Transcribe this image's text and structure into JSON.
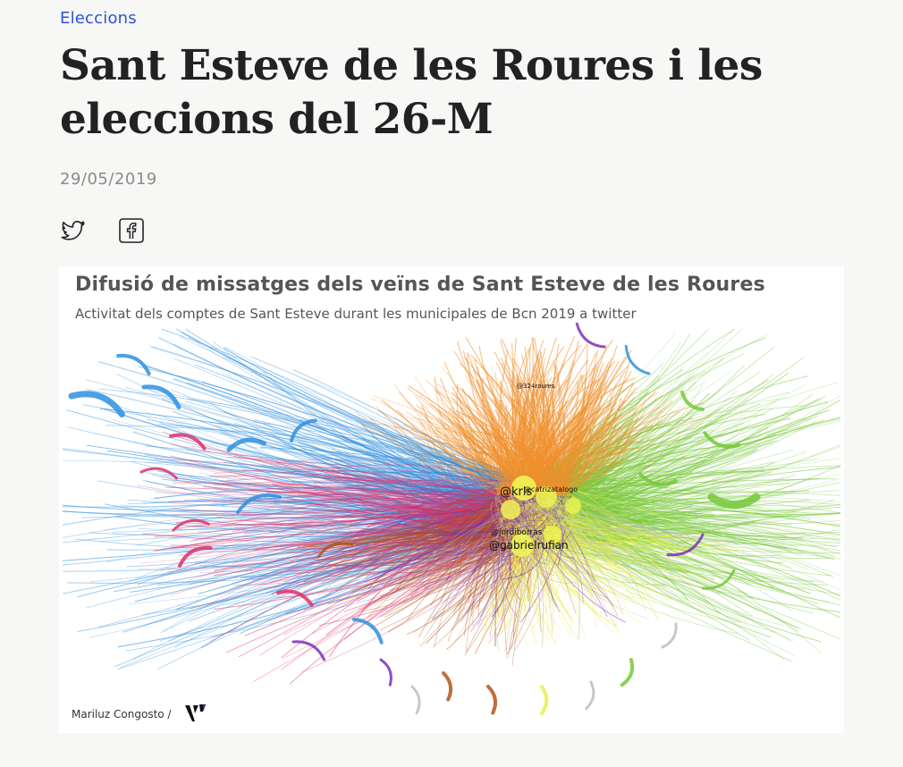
{
  "article": {
    "category": "Eleccions",
    "title": "Sant Esteve de les Roures i les eleccions del 26-M",
    "date": "29/05/2019"
  },
  "share": {
    "twitter_icon": "twitter-icon",
    "facebook_icon": "facebook-icon"
  },
  "figure": {
    "title": "Difusió de missatges dels veïns de Sant Esteve de les Roures",
    "subtitle": "Activitat dels comptes de Sant Esteve durant les municipales de Bcn 2019 a twitter",
    "credit": "Mariluz Congosto /",
    "logo": "vilaweb-logo",
    "labels": {
      "top_node": "@324roures",
      "node_a": "@krls",
      "node_b": "@catrizatalogo",
      "node_c": "@jordiborras",
      "node_d": "@gabrielrufian"
    },
    "colors": {
      "blue": "#2f8fdf",
      "orange": "#f0902c",
      "green": "#78c83a",
      "pink": "#de2f6b",
      "yellow": "#e9ee4a",
      "brown": "#b5541a",
      "purple": "#7a30b8",
      "grey": "#bdbdbd"
    }
  }
}
